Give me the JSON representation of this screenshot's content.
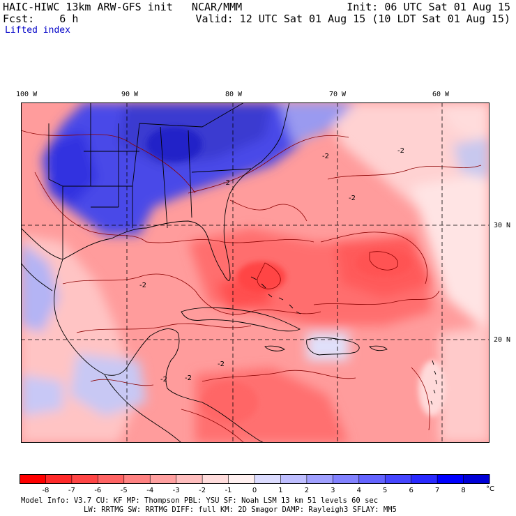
{
  "header": {
    "model_line": "HAIC-HIWC 13km ARW-GFS init   NCAR/MMM",
    "init_line": "Init: 06 UTC Sat 01 Aug 15",
    "fcst_line": "Fcst:    6 h",
    "valid_line": "Valid: 12 UTC Sat 01 Aug 15 (10 LDT Sat 01 Aug 15)",
    "field_name": "Lifted index"
  },
  "map": {
    "lon_labels": [
      "100 W",
      "90 W",
      "80 W",
      "70 W",
      "60 W"
    ],
    "lat_labels": [
      "30 N",
      "20 N"
    ],
    "contour_label": "-2"
  },
  "colorbar": {
    "unit": "°C",
    "ticks": [
      "-8",
      "-7",
      "-6",
      "-5",
      "-4",
      "-3",
      "-2",
      "-1",
      "0",
      "1",
      "2",
      "3",
      "4",
      "5",
      "6",
      "7",
      "8"
    ],
    "colors": [
      "#ff0000",
      "#ff2a2a",
      "#ff4646",
      "#ff6464",
      "#ff8282",
      "#ffa0a0",
      "#ffbebe",
      "#ffdcdc",
      "#fff0f0",
      "#dcdcff",
      "#bebeff",
      "#a0a0ff",
      "#8282ff",
      "#6464ff",
      "#4646ff",
      "#2a2aff",
      "#0000ff",
      "#0000d7"
    ]
  },
  "footer": {
    "line1": "Model Info: V3.7    CU: KF    MP: Thompson    PBL: YSU      SF: Noah LSM    13 km   51 levels   60 sec",
    "line2": "LW: RRTMG    SW: RRTMG  DIFF: full   KM: 2D Smagor DAMP: Rayleigh3  SFLAY: MM5"
  }
}
